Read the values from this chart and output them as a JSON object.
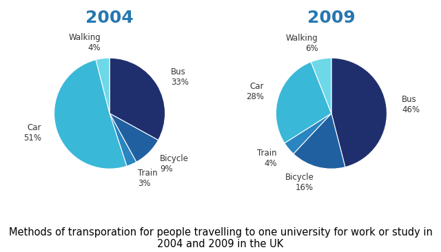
{
  "title_2004": "2004",
  "title_2009": "2009",
  "title_color": "#2678b0",
  "caption": "Methods of transporation for people travelling to one university for work or study in\n2004 and 2009 in the UK",
  "caption_fontsize": 10.5,
  "title_fontsize": 18,
  "label_fontsize": 8.5,
  "data_2004": {
    "labels": [
      "Bus",
      "Bicycle",
      "Train",
      "Car",
      "Walking"
    ],
    "values": [
      33,
      9,
      3,
      51,
      4
    ],
    "colors": [
      "#1f2f6e",
      "#2060a0",
      "#2a85c0",
      "#3ab8d8",
      "#6dd8e8"
    ],
    "startangle": 90
  },
  "data_2009": {
    "labels": [
      "Bus",
      "Bicycle",
      "Train",
      "Car",
      "Walking"
    ],
    "values": [
      46,
      16,
      4,
      28,
      6
    ],
    "colors": [
      "#1f2f6e",
      "#2060a0",
      "#2a85c0",
      "#3ab8d8",
      "#6dd8e8"
    ],
    "startangle": 90
  },
  "background": "#ffffff"
}
